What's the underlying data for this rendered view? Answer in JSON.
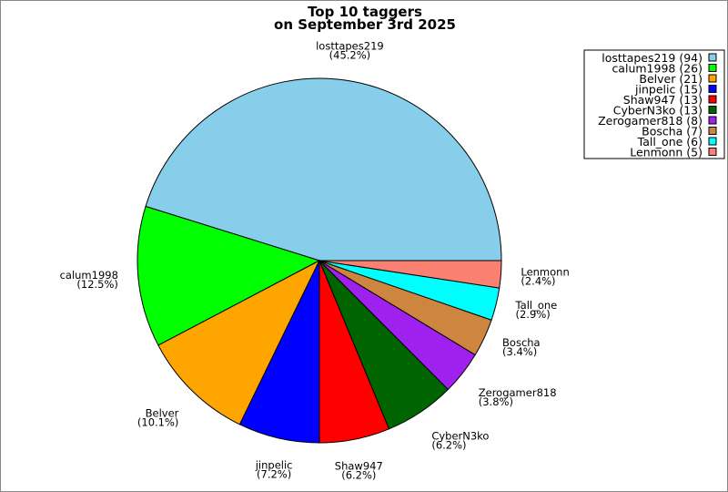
{
  "chart_data": {
    "type": "pie",
    "title_lines": [
      "Top 10 taggers",
      "on September 3rd 2025"
    ],
    "start_angle_deg": 0,
    "direction": "counterclockwise",
    "legend_position": "top-right",
    "slices": [
      {
        "label": "losttapes219",
        "value": 94,
        "percent": "45.2%",
        "color": "#87ceeb"
      },
      {
        "label": "calum1998",
        "value": 26,
        "percent": "12.5%",
        "color": "#00ff00"
      },
      {
        "label": "Belver",
        "value": 21,
        "percent": "10.1%",
        "color": "#ffa500"
      },
      {
        "label": "jinpelic",
        "value": 15,
        "percent": "7.2%",
        "color": "#0000ff"
      },
      {
        "label": "Shaw947",
        "value": 13,
        "percent": "6.2%",
        "color": "#ff0000"
      },
      {
        "label": "CyberN3ko",
        "value": 13,
        "percent": "6.2%",
        "color": "#006400"
      },
      {
        "label": "Zerogamer818",
        "value": 8,
        "percent": "3.8%",
        "color": "#a020f0"
      },
      {
        "label": "Boscha",
        "value": 7,
        "percent": "3.4%",
        "color": "#cd853f"
      },
      {
        "label": "Tall_one",
        "value": 6,
        "percent": "2.9%",
        "color": "#00ffff"
      },
      {
        "label": "Lenmonn",
        "value": 5,
        "percent": "2.4%",
        "color": "#fa8072"
      }
    ]
  }
}
